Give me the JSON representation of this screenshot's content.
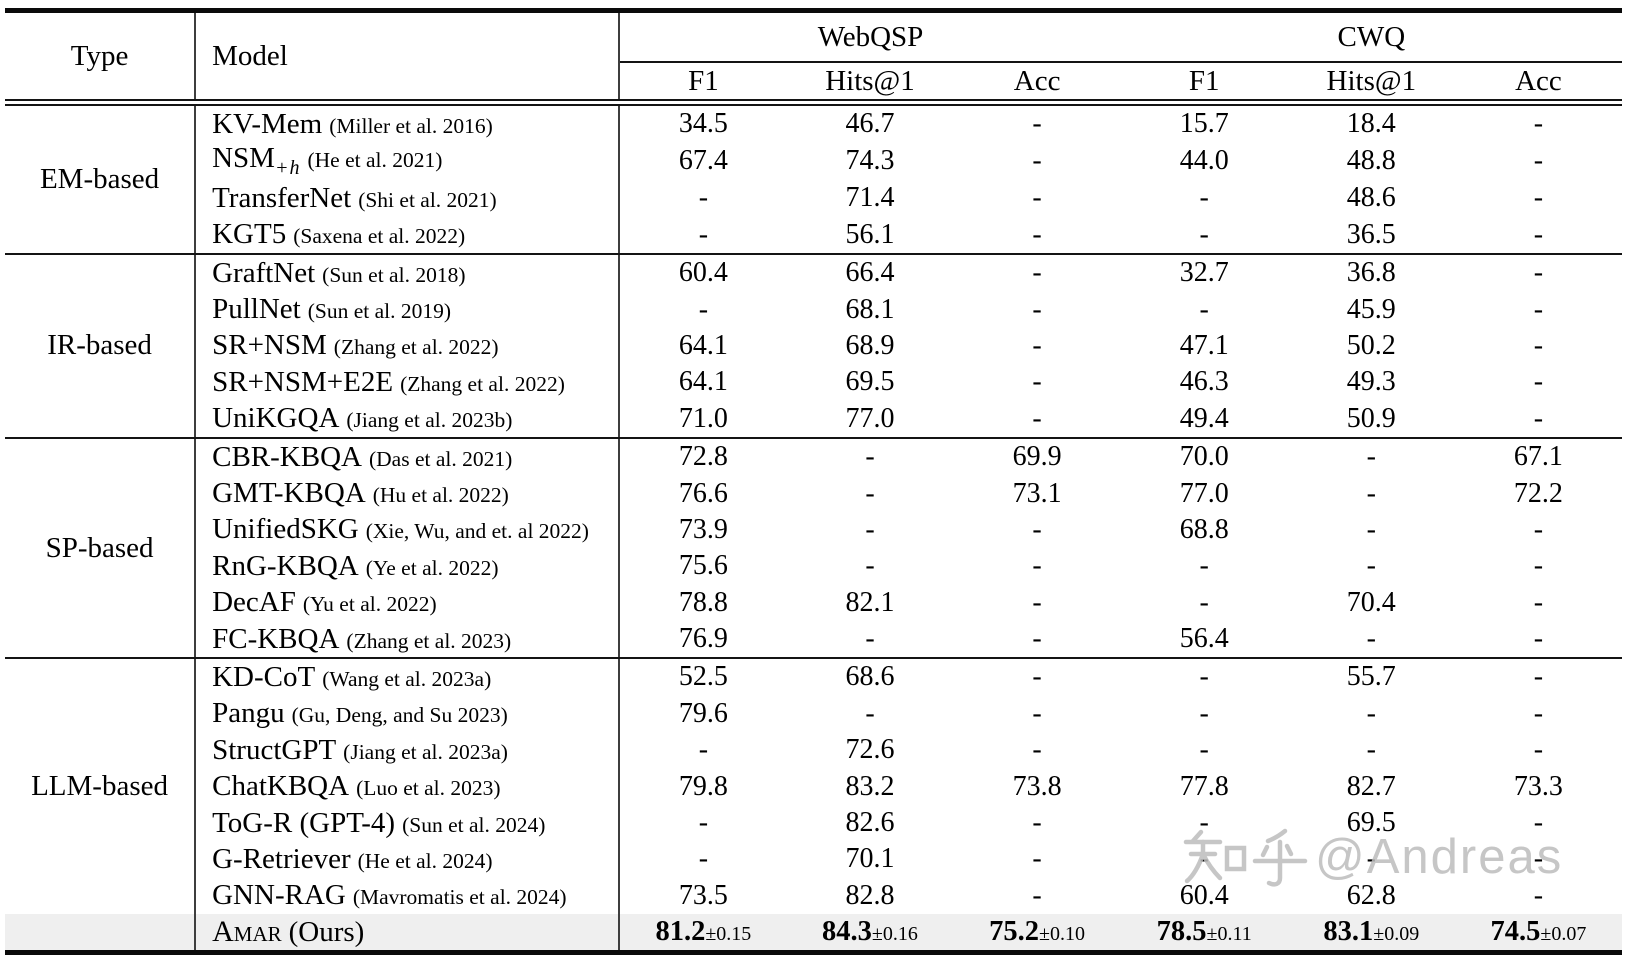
{
  "watermark": {
    "text": "知乎@Andreas",
    "latin": "@Andreas",
    "color": "#bdbdbd"
  },
  "table": {
    "highlight_color": "#efefef",
    "header": {
      "type": "Type",
      "model": "Model",
      "groups": [
        "WebQSP",
        "CWQ"
      ],
      "metrics": [
        "F1",
        "Hits@1",
        "Acc",
        "F1",
        "Hits@1",
        "Acc"
      ]
    },
    "groups": [
      {
        "type": "EM-based",
        "rows": [
          {
            "model": "KV-Mem",
            "citation": "(Miller et al. 2016)",
            "values": [
              "34.5",
              "46.7",
              "-",
              "15.7",
              "18.4",
              "-"
            ]
          },
          {
            "model": "NSM",
            "model_sub": "+h",
            "citation": "(He et al. 2021)",
            "values": [
              "67.4",
              "74.3",
              "-",
              "44.0",
              "48.8",
              "-"
            ]
          },
          {
            "model": "TransferNet",
            "citation": "(Shi et al. 2021)",
            "values": [
              "-",
              "71.4",
              "-",
              "-",
              "48.6",
              "-"
            ]
          },
          {
            "model": "KGT5",
            "citation": "(Saxena et al. 2022)",
            "values": [
              "-",
              "56.1",
              "-",
              "-",
              "36.5",
              "-"
            ]
          }
        ]
      },
      {
        "type": "IR-based",
        "rows": [
          {
            "model": "GraftNet",
            "citation": "(Sun et al. 2018)",
            "values": [
              "60.4",
              "66.4",
              "-",
              "32.7",
              "36.8",
              "-"
            ]
          },
          {
            "model": "PullNet",
            "citation": "(Sun et al. 2019)",
            "values": [
              "-",
              "68.1",
              "-",
              "-",
              "45.9",
              "-"
            ]
          },
          {
            "model": "SR+NSM",
            "citation": "(Zhang et al. 2022)",
            "values": [
              "64.1",
              "68.9",
              "-",
              "47.1",
              "50.2",
              "-"
            ]
          },
          {
            "model": "SR+NSM+E2E",
            "citation": "(Zhang et al. 2022)",
            "values": [
              "64.1",
              "69.5",
              "-",
              "46.3",
              "49.3",
              "-"
            ]
          },
          {
            "model": "UniKGQA",
            "citation": "(Jiang et al. 2023b)",
            "values": [
              "71.0",
              "77.0",
              "-",
              "49.4",
              "50.9",
              "-"
            ]
          }
        ]
      },
      {
        "type": "SP-based",
        "rows": [
          {
            "model": "CBR-KBQA",
            "citation": "(Das et al. 2021)",
            "values": [
              "72.8",
              "-",
              "69.9",
              "70.0",
              "-",
              "67.1"
            ]
          },
          {
            "model": "GMT-KBQA",
            "citation": "(Hu et al. 2022)",
            "values": [
              "76.6",
              "-",
              "73.1",
              "77.0",
              "-",
              "72.2"
            ]
          },
          {
            "model": "UnifiedSKG",
            "citation": "(Xie, Wu, and et. al 2022)",
            "values": [
              "73.9",
              "-",
              "-",
              "68.8",
              "-",
              "-"
            ]
          },
          {
            "model": "RnG-KBQA",
            "citation": "(Ye et al. 2022)",
            "values": [
              "75.6",
              "-",
              "-",
              "-",
              "-",
              "-"
            ]
          },
          {
            "model": "DecAF",
            "citation": "(Yu et al. 2022)",
            "values": [
              "78.8",
              "82.1",
              "-",
              "-",
              "70.4",
              "-"
            ]
          },
          {
            "model": "FC-KBQA",
            "citation": "(Zhang et al. 2023)",
            "values": [
              "76.9",
              "-",
              "-",
              "56.4",
              "-",
              "-"
            ]
          }
        ]
      },
      {
        "type": "LLM-based",
        "rows": [
          {
            "model": "KD-CoT",
            "citation": "(Wang et al. 2023a)",
            "values": [
              "52.5",
              "68.6",
              "-",
              "-",
              "55.7",
              "-"
            ]
          },
          {
            "model": "Pangu",
            "citation": "(Gu, Deng, and Su 2023)",
            "values": [
              "79.6",
              "-",
              "-",
              "-",
              "-",
              "-"
            ]
          },
          {
            "model": "StructGPT",
            "citation": "(Jiang et al. 2023a)",
            "values": [
              "-",
              "72.6",
              "-",
              "-",
              "-",
              "-"
            ]
          },
          {
            "model": "ChatKBQA",
            "citation": "(Luo et al. 2023)",
            "values": [
              "79.8",
              "83.2",
              "73.8",
              "77.8",
              "82.7",
              "73.3"
            ]
          },
          {
            "model": "ToG-R (GPT-4)",
            "citation": "(Sun et al. 2024)",
            "values": [
              "-",
              "82.6",
              "-",
              "-",
              "69.5",
              "-"
            ]
          },
          {
            "model": "G-Retriever",
            "citation": "(He et al. 2024)",
            "values": [
              "-",
              "70.1",
              "-",
              "-",
              "-",
              "-"
            ]
          },
          {
            "model": "GNN-RAG",
            "citation": "(Mavromatis et al. 2024)",
            "values": [
              "73.5",
              "82.8",
              "-",
              "60.4",
              "62.8",
              "-"
            ]
          }
        ]
      }
    ],
    "ours_row": {
      "model": "Amar",
      "suffix": "(Ours)",
      "values": [
        {
          "v": "81.2",
          "std": "±0.15"
        },
        {
          "v": "84.3",
          "std": "±0.16"
        },
        {
          "v": "75.2",
          "std": "±0.10"
        },
        {
          "v": "78.5",
          "std": "±0.11"
        },
        {
          "v": "83.1",
          "std": "±0.09"
        },
        {
          "v": "74.5",
          "std": "±0.07"
        }
      ]
    }
  }
}
